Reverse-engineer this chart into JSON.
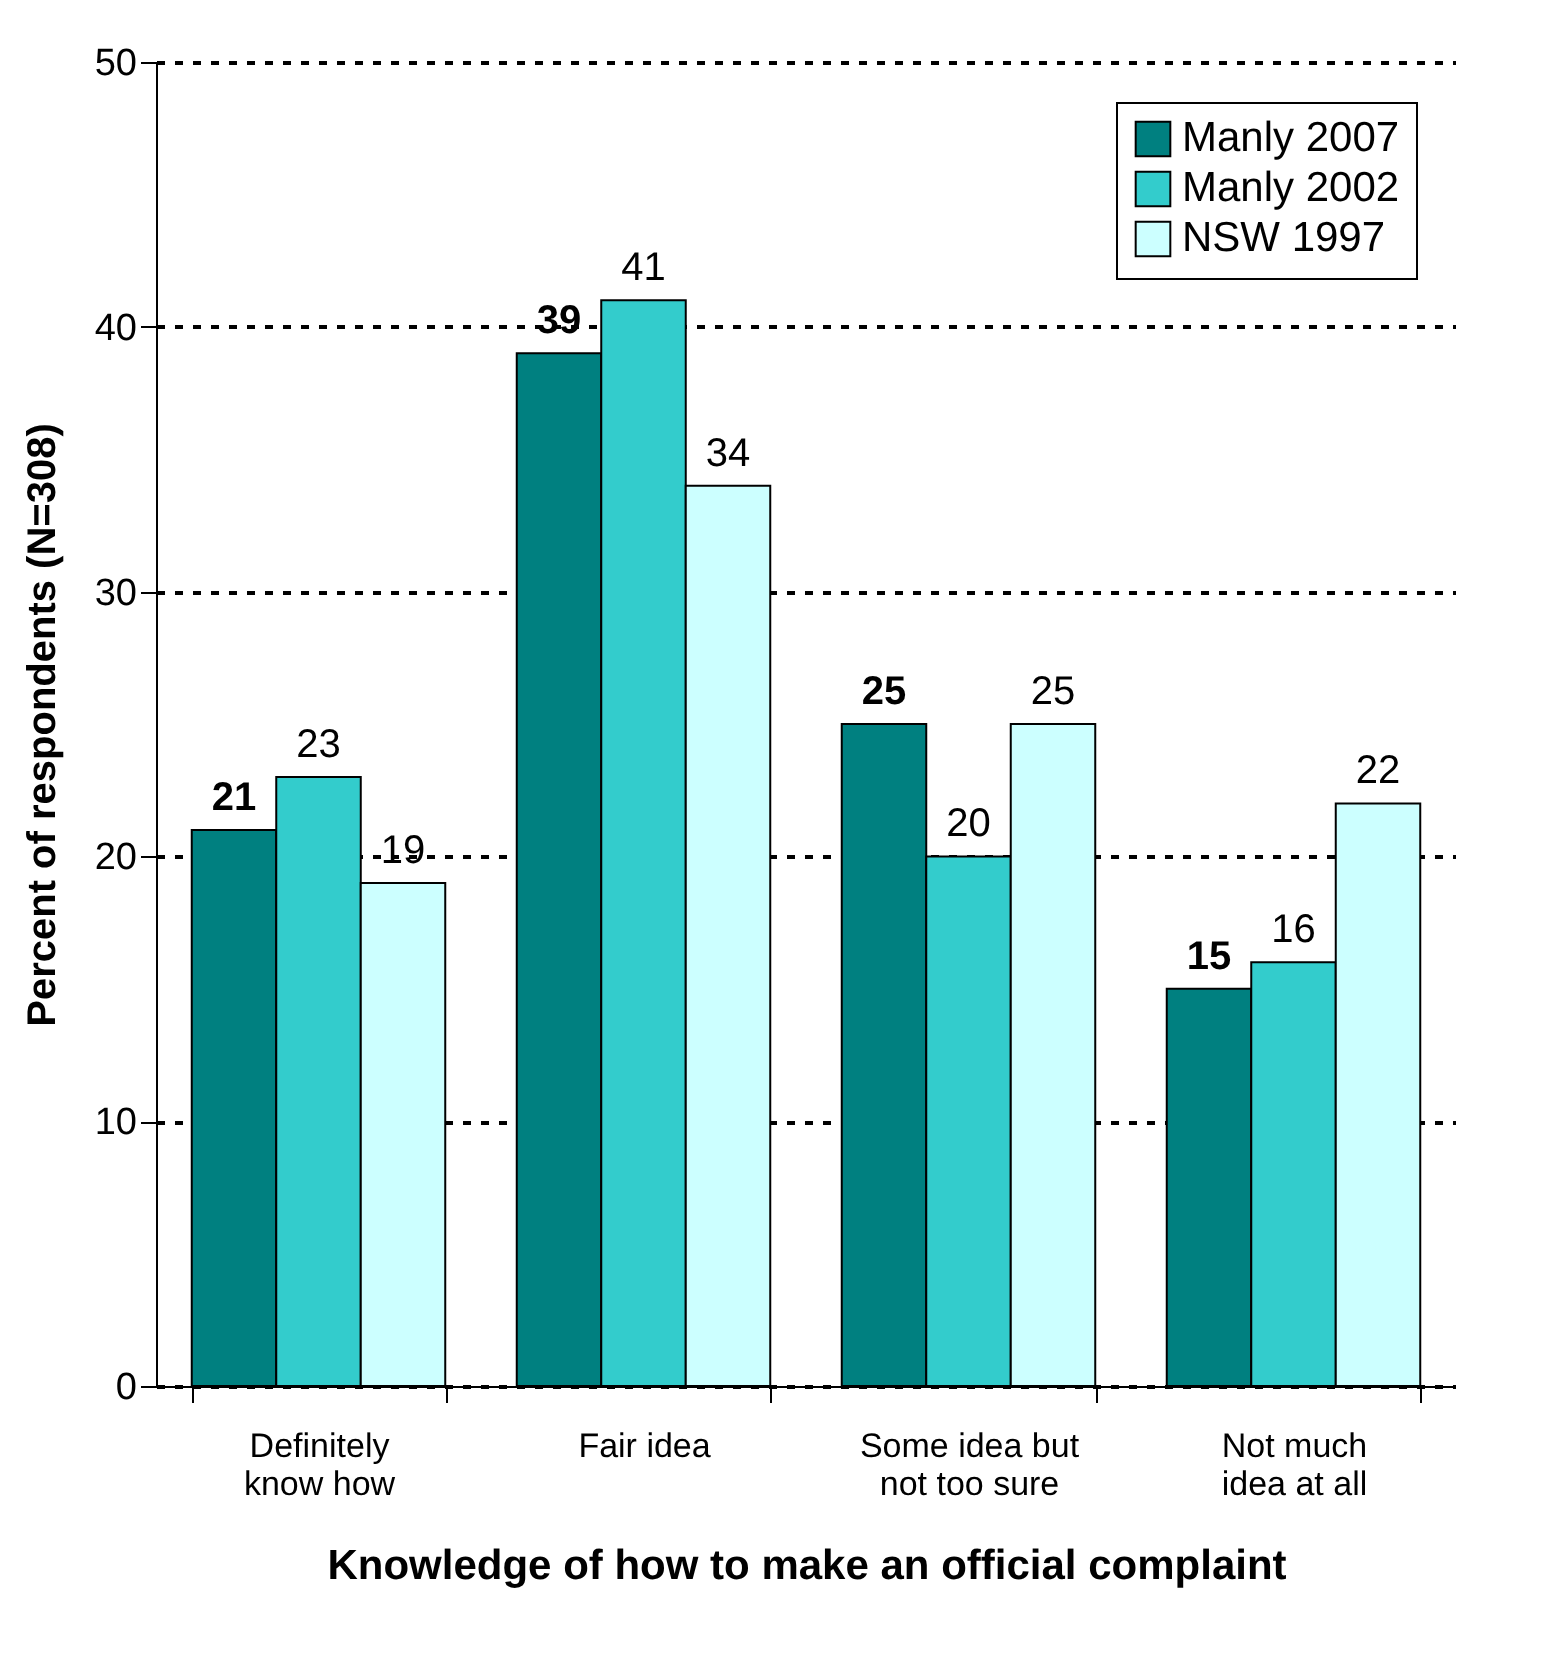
{
  "chart_data": {
    "type": "bar",
    "xlabel": "Knowledge of how to make an official complaint",
    "ylabel": "Percent of respondents (N=308)",
    "categories": [
      "Definitely know how",
      "Fair idea",
      "Some idea but not too sure",
      "Not much idea at all"
    ],
    "series": [
      {
        "name": "Manly 2007",
        "color": "#008080",
        "values": [
          21,
          39,
          25,
          15
        ]
      },
      {
        "name": "Manly 2002",
        "color": "#33cccc",
        "values": [
          23,
          41,
          20,
          16
        ]
      },
      {
        "name": "NSW 1997",
        "color": "#ccffff",
        "values": [
          19,
          34,
          25,
          22
        ]
      }
    ],
    "ylim": [
      0,
      50
    ],
    "yticks": [
      0,
      10,
      20,
      30,
      40,
      50
    ],
    "grid": "y",
    "legend": "top right",
    "data_labels": true
  }
}
